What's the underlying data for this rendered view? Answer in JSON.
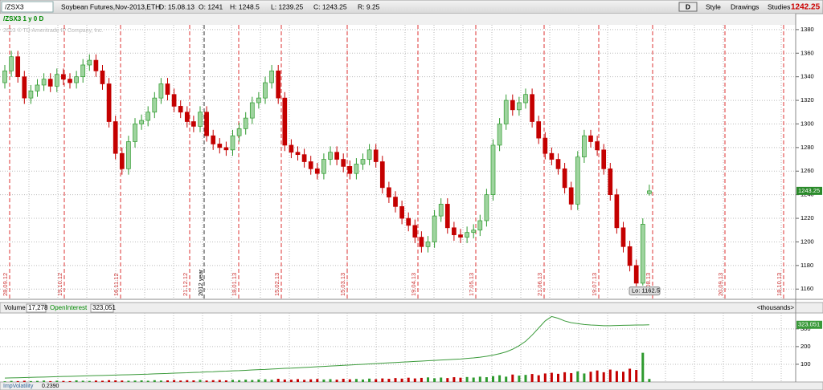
{
  "toolbar": {
    "symbol": "/ZSX3",
    "description": "Soybean Futures,Nov-2013,ETH",
    "date": "D: 15.08.13",
    "open": "O: 1241",
    "high": "H: 1248.5",
    "low": "L: 1239.25",
    "close": "C: 1243.25",
    "range": "R: 9.25",
    "aggregation": "D",
    "style": "Style",
    "drawings": "Drawings",
    "studies": "Studies",
    "last": "1242.25"
  },
  "chart_data": [
    {
      "type": "candlestick",
      "study_label": "/ZSX3 1 y 0 D",
      "copyright": "2013 © TD Ameritrade IP Company, Inc.",
      "open": [
        1335,
        1345,
        1357,
        1340,
        1322,
        1328,
        1333,
        1338,
        1332,
        1342,
        1338,
        1335,
        1340,
        1350,
        1354,
        1345,
        1334,
        1302,
        1275,
        1262,
        1285,
        1300,
        1303,
        1310,
        1322,
        1334,
        1325,
        1315,
        1310,
        1302,
        1298,
        1310,
        1290,
        1283,
        1280,
        1278,
        1290,
        1296,
        1305,
        1318,
        1322,
        1335,
        1345,
        1322,
        1282,
        1276,
        1274,
        1268,
        1262,
        1258,
        1270,
        1276,
        1270,
        1264,
        1258,
        1266,
        1270,
        1278,
        1268,
        1246,
        1238,
        1230,
        1220,
        1214,
        1204,
        1196,
        1200,
        1222,
        1232,
        1212,
        1206,
        1204,
        1208,
        1210,
        1218,
        1240,
        1282,
        1300,
        1320,
        1312,
        1318,
        1325,
        1302,
        1288,
        1275,
        1270,
        1262,
        1246,
        1232,
        1272,
        1290,
        1285,
        1278,
        1262,
        1240,
        1212,
        1196,
        1180,
        1165,
        1241
      ],
      "high": [
        1350,
        1362,
        1362,
        1345,
        1333,
        1338,
        1343,
        1343,
        1347,
        1347,
        1343,
        1345,
        1355,
        1359,
        1359,
        1350,
        1339,
        1307,
        1280,
        1290,
        1305,
        1308,
        1315,
        1327,
        1339,
        1339,
        1330,
        1320,
        1315,
        1307,
        1315,
        1315,
        1295,
        1288,
        1285,
        1295,
        1301,
        1310,
        1323,
        1327,
        1340,
        1350,
        1350,
        1327,
        1287,
        1281,
        1279,
        1273,
        1267,
        1275,
        1281,
        1281,
        1275,
        1269,
        1271,
        1275,
        1283,
        1283,
        1273,
        1251,
        1243,
        1235,
        1225,
        1219,
        1209,
        1205,
        1227,
        1237,
        1237,
        1217,
        1211,
        1213,
        1215,
        1223,
        1245,
        1287,
        1305,
        1325,
        1325,
        1323,
        1330,
        1330,
        1307,
        1293,
        1280,
        1275,
        1267,
        1251,
        1277,
        1295,
        1295,
        1290,
        1283,
        1267,
        1245,
        1217,
        1201,
        1185,
        1220,
        1248.5
      ],
      "low": [
        1330,
        1340,
        1335,
        1317,
        1317,
        1323,
        1328,
        1327,
        1327,
        1333,
        1330,
        1330,
        1335,
        1345,
        1340,
        1329,
        1297,
        1270,
        1257,
        1257,
        1280,
        1295,
        1298,
        1305,
        1317,
        1320,
        1310,
        1305,
        1297,
        1293,
        1293,
        1285,
        1278,
        1275,
        1273,
        1273,
        1285,
        1291,
        1300,
        1313,
        1317,
        1330,
        1317,
        1277,
        1271,
        1269,
        1263,
        1257,
        1253,
        1253,
        1265,
        1265,
        1259,
        1253,
        1253,
        1261,
        1265,
        1263,
        1241,
        1233,
        1225,
        1215,
        1209,
        1199,
        1191,
        1191,
        1195,
        1217,
        1207,
        1201,
        1199,
        1199,
        1203,
        1205,
        1213,
        1235,
        1277,
        1295,
        1307,
        1307,
        1313,
        1297,
        1283,
        1270,
        1265,
        1257,
        1241,
        1227,
        1227,
        1267,
        1280,
        1273,
        1257,
        1235,
        1207,
        1191,
        1175,
        1162.5,
        1163,
        1239.25
      ],
      "close": [
        1345,
        1357,
        1340,
        1322,
        1328,
        1333,
        1338,
        1332,
        1342,
        1338,
        1335,
        1340,
        1350,
        1354,
        1345,
        1334,
        1302,
        1275,
        1262,
        1285,
        1300,
        1303,
        1310,
        1322,
        1334,
        1325,
        1315,
        1310,
        1302,
        1298,
        1310,
        1290,
        1283,
        1280,
        1278,
        1290,
        1296,
        1305,
        1318,
        1322,
        1335,
        1345,
        1322,
        1282,
        1276,
        1274,
        1268,
        1262,
        1258,
        1270,
        1276,
        1270,
        1264,
        1258,
        1266,
        1270,
        1278,
        1268,
        1246,
        1238,
        1230,
        1220,
        1214,
        1204,
        1196,
        1200,
        1222,
        1232,
        1212,
        1206,
        1204,
        1208,
        1210,
        1218,
        1240,
        1282,
        1300,
        1320,
        1312,
        1318,
        1325,
        1302,
        1288,
        1275,
        1270,
        1262,
        1246,
        1232,
        1272,
        1290,
        1285,
        1278,
        1262,
        1240,
        1212,
        1196,
        1180,
        1165,
        1215,
        1243.25
      ],
      "up_color": "#2e9a2e",
      "down_color": "#c40000",
      "ylim": [
        1152,
        1384
      ],
      "yticks": [
        1160,
        1180,
        1200,
        1220,
        1240,
        1260,
        1280,
        1300,
        1320,
        1340,
        1360,
        1380
      ],
      "grid": true,
      "date_markers": [
        "28.09.12",
        "19.10.12",
        "16.11.12",
        "21.12.12",
        "18.01.13",
        "15.02.13",
        "15.03.13",
        "19.04.13",
        "17.05.13",
        "21.06.13",
        "19.07.13",
        "16.08.13",
        "20.09.13",
        "18.10.13"
      ],
      "year_marker": "2012 year",
      "last_price": 1243.25,
      "low_marker": {
        "value": 1162.5,
        "label": "Lo: 1162.5"
      }
    },
    {
      "type": "bar",
      "header_values": [
        "17,278",
        "323,051"
      ],
      "unit_label": "<thousands>",
      "series": [
        {
          "name": "Volume",
          "type": "bar",
          "values": [
            4,
            6,
            5,
            7,
            5,
            6,
            8,
            5,
            7,
            6,
            5,
            9,
            7,
            6,
            8,
            7,
            10,
            9,
            8,
            7,
            8,
            9,
            7,
            10,
            8,
            9,
            11,
            8,
            10,
            9,
            12,
            8,
            10,
            11,
            9,
            12,
            10,
            13,
            11,
            14,
            15,
            12,
            18,
            14,
            13,
            16,
            12,
            15,
            17,
            14,
            16,
            13,
            18,
            15,
            17,
            14,
            19,
            16,
            20,
            18,
            22,
            19,
            24,
            20,
            23,
            26,
            21,
            25,
            22,
            27,
            24,
            28,
            25,
            30,
            27,
            33,
            38,
            30,
            42,
            36,
            40,
            45,
            38,
            48,
            52,
            46,
            55,
            50,
            60,
            48,
            58,
            65,
            55,
            70,
            62,
            58,
            75,
            68,
            165,
            17.278
          ]
        },
        {
          "name": "OpenInterest",
          "type": "line",
          "color": "#3a9a3a",
          "values": [
            22,
            23,
            24,
            25,
            26,
            27,
            28,
            29,
            30,
            31,
            32,
            33,
            34,
            35,
            36,
            37,
            38,
            39,
            40,
            41,
            42,
            43,
            44,
            46,
            47,
            48,
            50,
            51,
            52,
            54,
            55,
            57,
            58,
            60,
            61,
            63,
            64,
            66,
            68,
            70,
            71,
            73,
            75,
            77,
            78,
            80,
            82,
            84,
            86,
            88,
            90,
            92,
            94,
            96,
            98,
            100,
            102,
            104,
            106,
            108,
            110,
            112,
            114,
            116,
            118,
            120,
            122,
            124,
            126,
            128,
            130,
            133,
            136,
            140,
            145,
            152,
            160,
            170,
            185,
            205,
            230,
            265,
            305,
            345,
            370,
            360,
            345,
            335,
            330,
            325,
            322,
            320,
            318,
            318,
            319,
            320,
            321,
            322,
            322,
            323.051
          ]
        }
      ],
      "ylim": [
        0,
        390
      ],
      "yticks": [
        100,
        200,
        300
      ],
      "grid": true
    }
  ],
  "bottom_panel": {
    "name": "ImpVolatility",
    "value": "0.2390"
  }
}
